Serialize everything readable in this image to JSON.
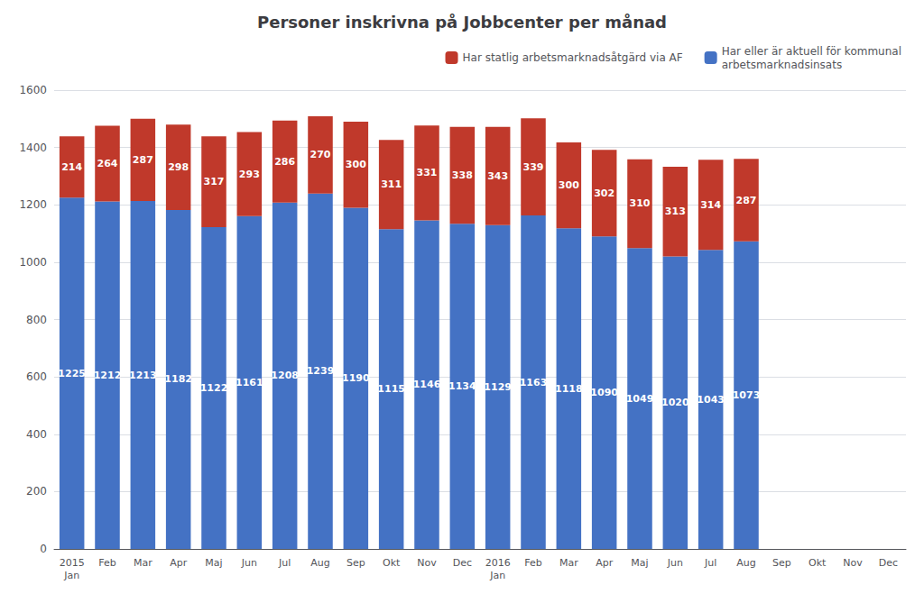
{
  "chart_data": {
    "type": "bar",
    "title": "Personer inskrivna på Jobbcenter per månad",
    "categories": [
      "2015\nJan",
      "Feb",
      "Mar",
      "Apr",
      "Maj",
      "Jun",
      "Jul",
      "Aug",
      "Sep",
      "Okt",
      "Nov",
      "Dec",
      "2016\nJan",
      "Feb",
      "Mar",
      "Apr",
      "Maj",
      "Jun",
      "Jul",
      "Aug",
      "Sep",
      "Okt",
      "Nov",
      "Dec"
    ],
    "series": [
      {
        "name": "Har eller är aktuell för kommunal\narbetsmarknadsinsats",
        "color": "#4472C4",
        "values": [
          1225,
          1212,
          1213,
          1182,
          1122,
          1161,
          1208,
          1239,
          1190,
          1115,
          1146,
          1134,
          1129,
          1163,
          1118,
          1090,
          1049,
          1020,
          1043,
          1073,
          0,
          0,
          0,
          0
        ]
      },
      {
        "name": "Har statlig arbetsmarknadsåtgärd via AF",
        "color": "#C0392B",
        "values": [
          214,
          264,
          287,
          298,
          317,
          293,
          286,
          270,
          300,
          311,
          331,
          338,
          343,
          339,
          300,
          302,
          310,
          313,
          314,
          287,
          0,
          0,
          0,
          0
        ]
      }
    ],
    "stacked": true,
    "data_labels": true,
    "ylim": [
      0,
      1600
    ],
    "yticks": [
      0,
      200,
      400,
      600,
      800,
      1000,
      1200,
      1400,
      1600
    ],
    "grid": true,
    "legend": "upper right"
  }
}
